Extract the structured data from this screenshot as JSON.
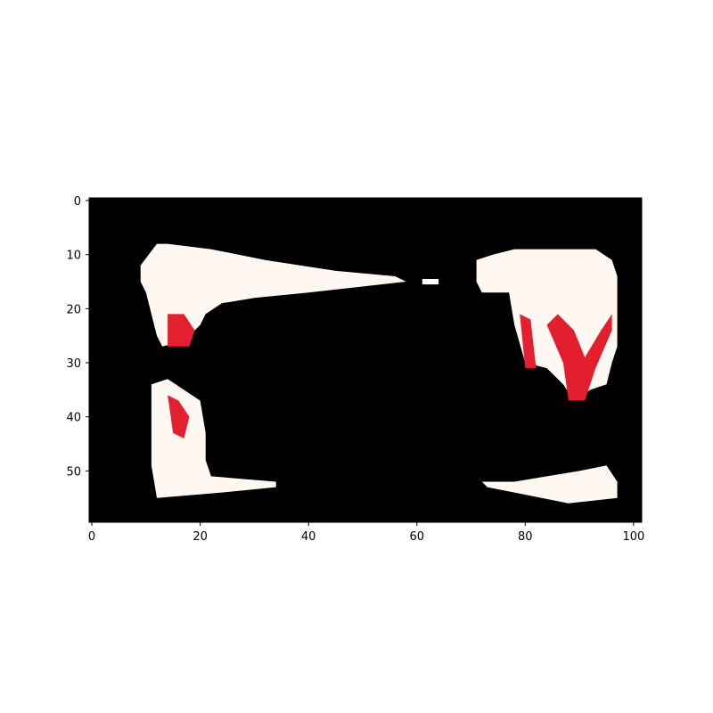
{
  "chart_data": {
    "type": "heatmap",
    "title": "",
    "xlabel": "",
    "ylabel": "",
    "xlim": [
      -0.5,
      101.5
    ],
    "ylim": [
      59.5,
      -0.5
    ],
    "grid": false,
    "x_ticks": [
      0,
      20,
      40,
      60,
      80,
      100
    ],
    "y_ticks": [
      0,
      10,
      20,
      30,
      40,
      50
    ],
    "x_tick_labels": [
      "0",
      "20",
      "40",
      "60",
      "80",
      "100"
    ],
    "y_tick_labels": [
      "0",
      "10",
      "20",
      "30",
      "40",
      "50"
    ],
    "background_color": "#000000",
    "regions": [
      {
        "name": "top-left",
        "color": "#fff8f2",
        "polygon": [
          [
            9,
            12
          ],
          [
            12,
            8
          ],
          [
            14,
            8
          ],
          [
            22,
            9
          ],
          [
            32,
            11
          ],
          [
            45,
            13
          ],
          [
            56,
            14
          ],
          [
            58,
            15
          ],
          [
            40,
            17
          ],
          [
            30,
            18
          ],
          [
            24,
            19
          ],
          [
            21,
            21
          ],
          [
            20,
            23
          ],
          [
            17,
            26
          ],
          [
            13,
            27
          ],
          [
            12,
            25
          ],
          [
            10,
            17
          ],
          [
            9,
            15
          ]
        ]
      },
      {
        "name": "top-left-red",
        "color": "#e2202f",
        "polygon": [
          [
            14,
            21
          ],
          [
            17,
            21
          ],
          [
            19,
            24
          ],
          [
            18,
            27
          ],
          [
            14,
            27
          ]
        ]
      },
      {
        "name": "top-center-dash",
        "color": "#ffffff",
        "polygon": [
          [
            61,
            14.5
          ],
          [
            64,
            14.5
          ],
          [
            64,
            15.5
          ],
          [
            61,
            15.5
          ]
        ]
      },
      {
        "name": "top-right",
        "color": "#fff8f2",
        "polygon": [
          [
            71,
            11
          ],
          [
            74,
            10
          ],
          [
            78,
            9
          ],
          [
            93,
            9
          ],
          [
            96,
            11
          ],
          [
            97,
            14
          ],
          [
            97,
            27
          ],
          [
            96,
            30
          ],
          [
            95,
            34
          ],
          [
            92,
            35
          ],
          [
            89,
            37
          ],
          [
            87,
            34
          ],
          [
            84,
            31
          ],
          [
            80,
            30
          ],
          [
            78,
            23
          ],
          [
            77,
            17
          ],
          [
            72,
            17
          ],
          [
            71,
            15
          ]
        ]
      },
      {
        "name": "top-right-red-v",
        "color": "#e21e2f",
        "polygon": [
          [
            86,
            21
          ],
          [
            89,
            24
          ],
          [
            91,
            29
          ],
          [
            94,
            24
          ],
          [
            96,
            21
          ],
          [
            96,
            24
          ],
          [
            93,
            31
          ],
          [
            91,
            37
          ],
          [
            88,
            37
          ],
          [
            87,
            30
          ],
          [
            84,
            23
          ]
        ]
      },
      {
        "name": "top-right-red-left",
        "color": "#e2202f",
        "polygon": [
          [
            79,
            21
          ],
          [
            81,
            22
          ],
          [
            82,
            31
          ],
          [
            80,
            31
          ]
        ]
      },
      {
        "name": "bottom-left",
        "color": "#fff8f2",
        "polygon": [
          [
            11,
            34
          ],
          [
            14,
            33
          ],
          [
            20,
            37
          ],
          [
            21,
            43
          ],
          [
            21,
            48
          ],
          [
            22,
            51
          ],
          [
            34,
            52
          ],
          [
            34,
            53
          ],
          [
            24,
            54
          ],
          [
            12,
            55
          ],
          [
            11,
            49
          ]
        ]
      },
      {
        "name": "bottom-left-red",
        "color": "#e2202f",
        "polygon": [
          [
            14,
            36
          ],
          [
            16,
            37
          ],
          [
            18,
            40
          ],
          [
            17,
            44
          ],
          [
            15,
            43
          ]
        ]
      },
      {
        "name": "bottom-right",
        "color": "#fff8f2",
        "polygon": [
          [
            72,
            52
          ],
          [
            78,
            52
          ],
          [
            84,
            51
          ],
          [
            90,
            50
          ],
          [
            95,
            49
          ],
          [
            97,
            52
          ],
          [
            97,
            55
          ],
          [
            88,
            56
          ],
          [
            78,
            54
          ],
          [
            73,
            53
          ]
        ]
      }
    ]
  }
}
